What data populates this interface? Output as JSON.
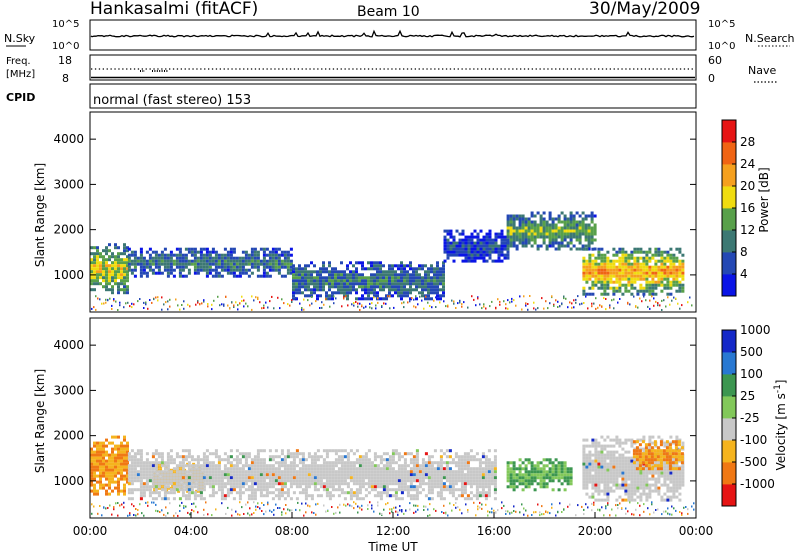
{
  "header": {
    "station": "Hankasalmi (fitACF)",
    "beam": "Beam 10",
    "date": "30/May/2009"
  },
  "noise_panel": {
    "left_label": "N.Sky",
    "right_label": "N.Search",
    "left_ticks": [
      "10^5",
      "10^0"
    ],
    "right_ticks": [
      "10^5",
      "10^0"
    ]
  },
  "freq_panel": {
    "left_label_1": "Freq.",
    "left_label_2": "[MHz]",
    "right_label": "Nave",
    "left_ticks": [
      "18",
      "8"
    ],
    "right_ticks": [
      "60",
      "0"
    ]
  },
  "cpid": {
    "label": "CPID",
    "text": "normal (fast stereo) 153"
  },
  "chart_data": [
    {
      "type": "heatmap",
      "quantity": "Power",
      "ylabel": "Slant Range [km]",
      "colorbar_label": "Power [dB]",
      "ylim": [
        180,
        4600
      ],
      "yticks": [
        "1000",
        "2000",
        "3000",
        "4000"
      ],
      "colorbar_ticks": [
        "4",
        "8",
        "12",
        "16",
        "20",
        "24",
        "28"
      ],
      "colorbar_colors": [
        "#0a14e6",
        "#2448b4",
        "#3c7873",
        "#58a04a",
        "#f0dc10",
        "#f5a01e",
        "#f06414",
        "#e61414"
      ],
      "regions": [
        {
          "t": [
            0.0,
            1.5
          ],
          "range": [
            600,
            1700
          ],
          "level": "medium-high"
        },
        {
          "t": [
            1.5,
            8.0
          ],
          "range": [
            1000,
            1600
          ],
          "level": "low-medium"
        },
        {
          "t": [
            8.0,
            14.0
          ],
          "range": [
            500,
            1300
          ],
          "level": "low-medium"
        },
        {
          "t": [
            14.0,
            16.5
          ],
          "range": [
            1300,
            2000
          ],
          "level": "low"
        },
        {
          "t": [
            16.5,
            20.0
          ],
          "range": [
            1600,
            2400
          ],
          "level": "medium"
        },
        {
          "t": [
            19.5,
            23.5
          ],
          "range": [
            600,
            1600
          ],
          "level": "high"
        }
      ]
    },
    {
      "type": "heatmap",
      "quantity": "Velocity",
      "ylabel": "Slant Range [km]",
      "colorbar_label": "Velocity [m s^-1]",
      "xlabel": "Time UT",
      "ylim": [
        180,
        4600
      ],
      "yticks": [
        "1000",
        "2000",
        "3000",
        "4000"
      ],
      "xticks": [
        "00:00",
        "04:00",
        "08:00",
        "12:00",
        "16:00",
        "20:00",
        "00:00"
      ],
      "colorbar_ticks": [
        "1000",
        "500",
        "100",
        "25",
        "-25",
        "-100",
        "-500",
        "-1000"
      ],
      "colorbar_colors": [
        "#1428c8",
        "#2878d2",
        "#3c9650",
        "#82c85a",
        "#c8c8c8",
        "#f5b41e",
        "#f07814",
        "#e61414"
      ],
      "regions": [
        {
          "t": [
            0.0,
            1.5
          ],
          "range": [
            700,
            2000
          ],
          "velocity": "-100 to -500"
        },
        {
          "t": [
            2.5,
            4.5
          ],
          "range": [
            800,
            1400
          ],
          "velocity": "-100"
        },
        {
          "t": [
            1.5,
            16.0
          ],
          "range": [
            600,
            1700
          ],
          "velocity": "-25 to 25"
        },
        {
          "t": [
            16.5,
            19.0
          ],
          "range": [
            800,
            1500
          ],
          "velocity": "100"
        },
        {
          "t": [
            19.5,
            23.5
          ],
          "range": [
            600,
            2000
          ],
          "velocity": "-25 to 25"
        },
        {
          "t": [
            21.5,
            23.5
          ],
          "range": [
            1300,
            1900
          ],
          "velocity": "-100 to -500"
        }
      ]
    }
  ]
}
